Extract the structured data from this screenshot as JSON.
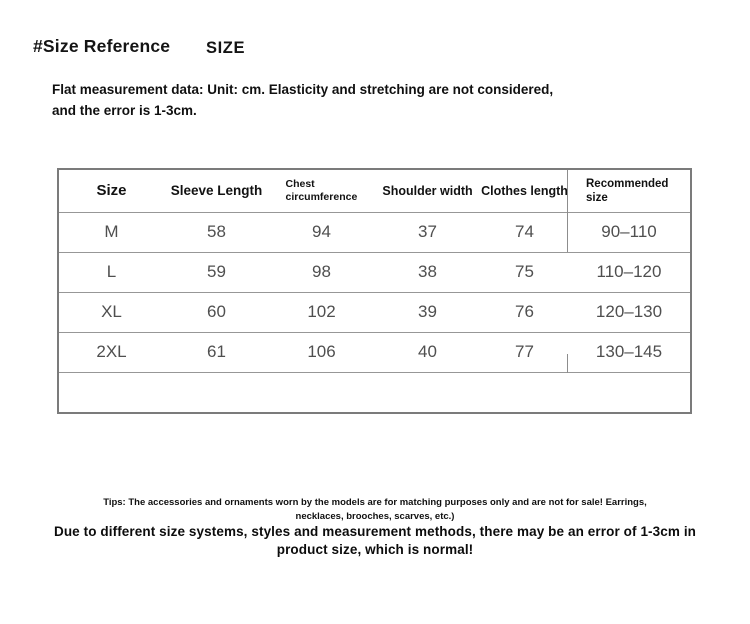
{
  "header": {
    "title": "#Size Reference",
    "size_label": "SIZE",
    "subtitle": "Flat measurement data: Unit: cm. Elasticity and stretching are not considered, and the error is 1-3cm."
  },
  "size_table": {
    "columns": [
      "Size",
      "Sleeve Length",
      "Chest circumference",
      "Shoulder width",
      "Clothes length",
      "Recommended size"
    ],
    "rows": [
      [
        "M",
        "58",
        "94",
        "37",
        "74",
        "90–110"
      ],
      [
        "L",
        "59",
        "98",
        "38",
        "75",
        "110–120"
      ],
      [
        "XL",
        "60",
        "102",
        "39",
        "76",
        "120–130"
      ],
      [
        "2XL",
        "61",
        "106",
        "40",
        "77",
        "130–145"
      ]
    ],
    "has_empty_last_row": true
  },
  "footer": {
    "tips_line1": "Tips: The accessories and ornaments worn by the models are for matching purposes only and are not for sale! Earrings,",
    "tips_line2": "necklaces, brooches, scarves, etc.)",
    "note_line1": "Due to different size systems, styles and measurement methods, there may be an error of 1-3cm in",
    "note_line2": "product size, which is normal!"
  },
  "colors": {
    "background": "#ffffff",
    "text_primary": "#141414",
    "table_value_text": "#4f4f4f",
    "table_border": "#8a8a8a"
  }
}
